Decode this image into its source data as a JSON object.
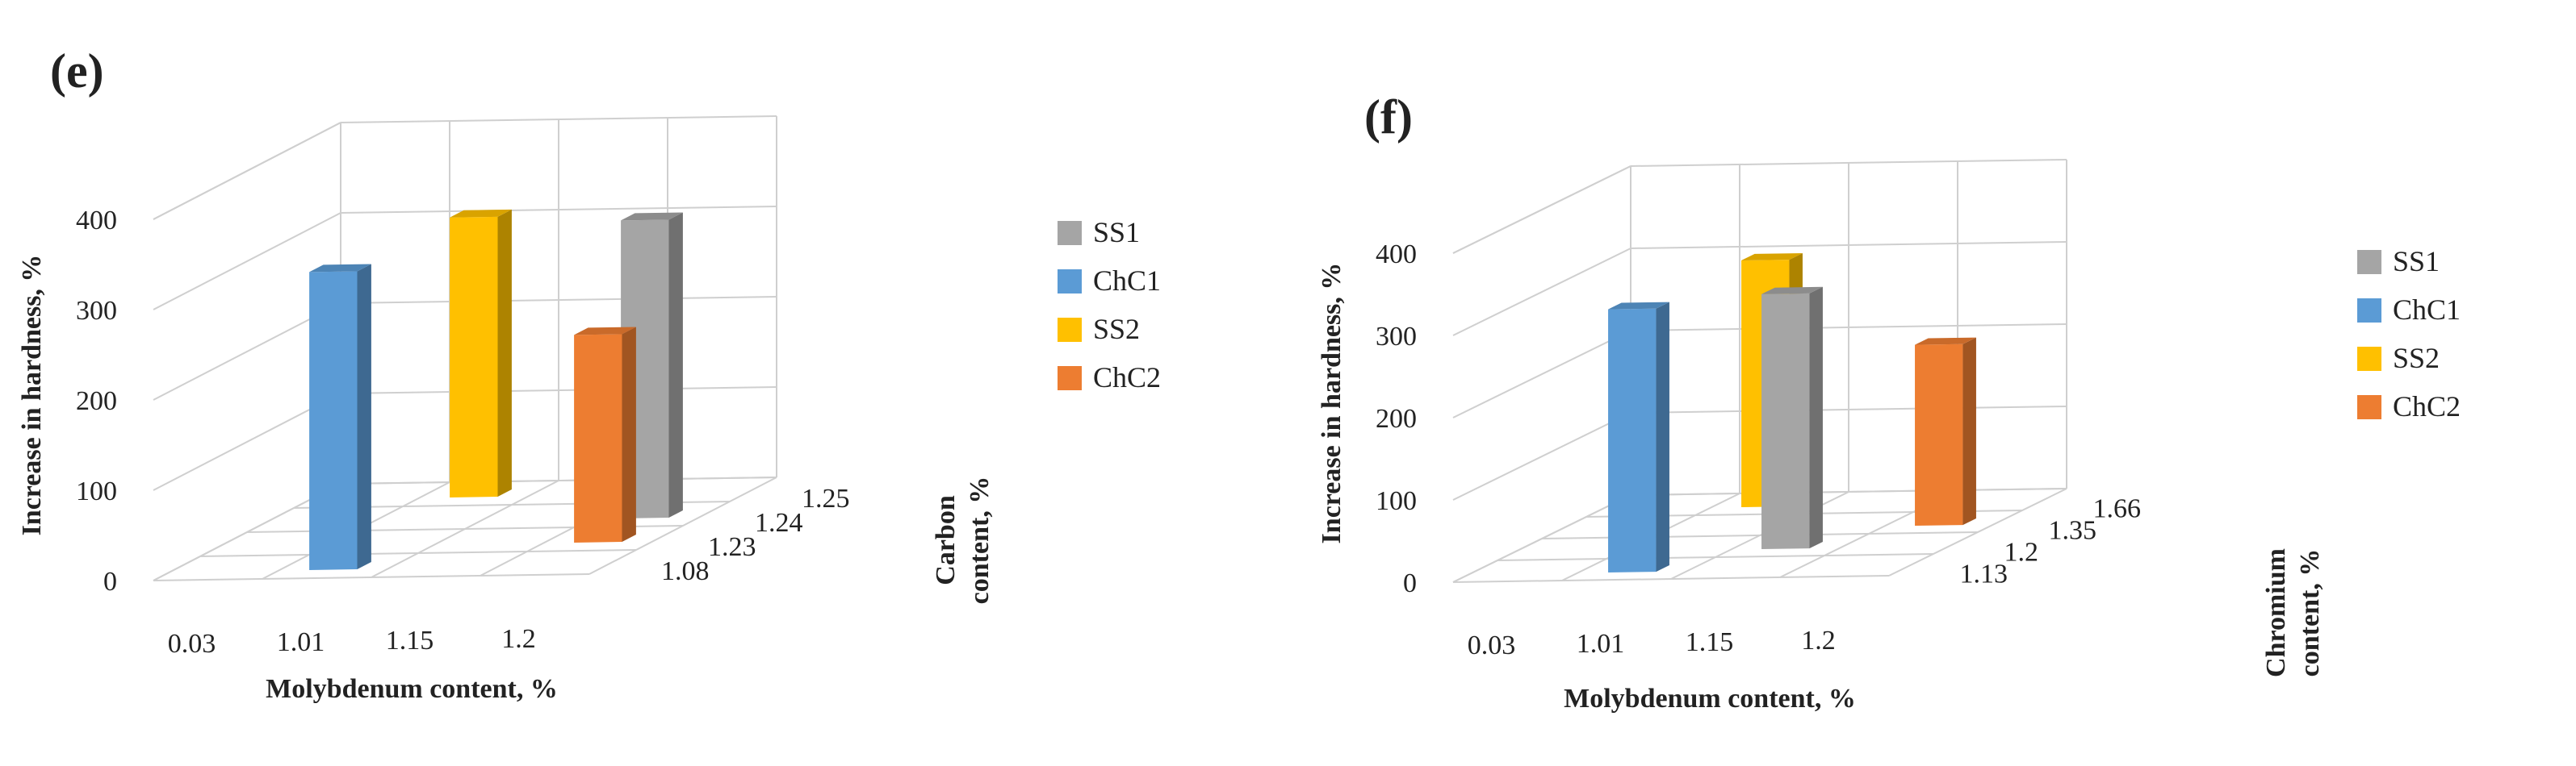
{
  "chart_data": [
    {
      "type": "bar",
      "panel_label": "(e)",
      "categories": [
        "0.03",
        "1.01",
        "1.15",
        "1.2"
      ],
      "depth_categories": [
        "1.08",
        "1.23",
        "1.24",
        "1.25"
      ],
      "zlabel": "Increase in hardness, %",
      "xlabel": "Molybdenum content, %",
      "ylabel_line1": "Carbon",
      "ylabel_line2": "content, %",
      "zticks": [
        "0",
        "100",
        "200",
        "300",
        "400"
      ],
      "zlim": [
        0,
        400
      ],
      "legend": [
        "SS1",
        "ChC1",
        "SS2",
        "ChC2"
      ],
      "series": [
        {
          "name": "ChC1",
          "category": "1.01",
          "depth": "1.08",
          "value": 330,
          "color": "#5b9bd5"
        },
        {
          "name": "ChC2",
          "category": "1.2",
          "depth": "1.23",
          "value": 230,
          "color": "#ed7d31"
        },
        {
          "name": "SS1",
          "category": "1.2",
          "depth": "1.24",
          "value": 330,
          "color": "#a5a5a5"
        },
        {
          "name": "SS2",
          "category": "1.01",
          "depth": "1.25",
          "value": 310,
          "color": "#ffc000"
        }
      ]
    },
    {
      "type": "bar",
      "panel_label": "(f)",
      "categories": [
        "0.03",
        "1.01",
        "1.15",
        "1.2"
      ],
      "depth_categories": [
        "1.13",
        "1.2",
        "1.35",
        "1.66"
      ],
      "zlabel": "Increase in hardness, %",
      "xlabel": "Molybdenum content, %",
      "ylabel_line1": "Chromium",
      "ylabel_line2": "content, %",
      "zticks": [
        "0",
        "100",
        "200",
        "300",
        "400"
      ],
      "zlim": [
        0,
        400
      ],
      "legend": [
        "SS1",
        "ChC1",
        "SS2",
        "ChC2"
      ],
      "series": [
        {
          "name": "ChC1",
          "category": "1.01",
          "depth": "1.13",
          "value": 320,
          "color": "#5b9bd5"
        },
        {
          "name": "SS1",
          "category": "1.15",
          "depth": "1.2",
          "value": 310,
          "color": "#a5a5a5"
        },
        {
          "name": "ChC2",
          "category": "1.2",
          "depth": "1.35",
          "value": 220,
          "color": "#ed7d31"
        },
        {
          "name": "SS2",
          "category": "1.01",
          "depth": "1.66",
          "value": 300,
          "color": "#ffc000"
        }
      ]
    }
  ]
}
